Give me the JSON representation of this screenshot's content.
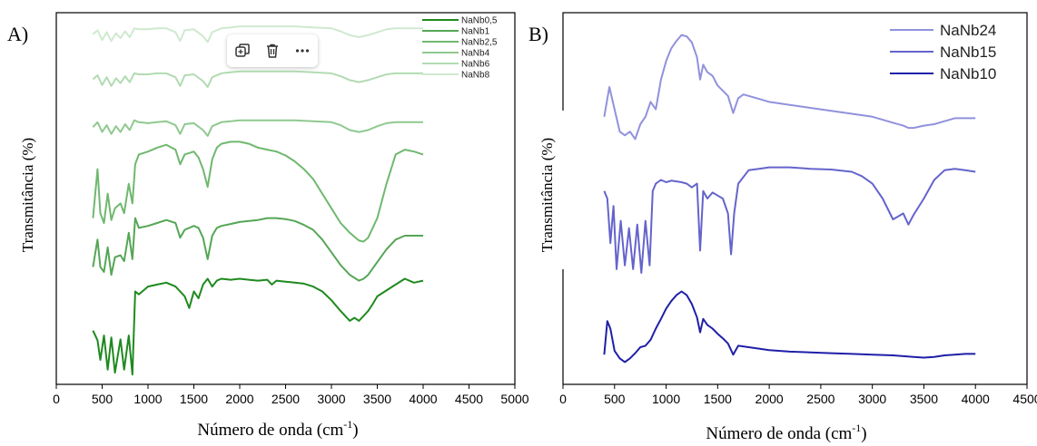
{
  "toolbar": {
    "buttons": [
      {
        "name": "copy-icon"
      },
      {
        "name": "trash-icon"
      },
      {
        "name": "more-icon"
      }
    ]
  },
  "chart_data": [
    {
      "panel_label": "A)",
      "type": "line",
      "xlabel": "Número de onda (cm",
      "xlabel_sup": "-1",
      "xlabel_end": ")",
      "ylabel": "Transmitância (%)",
      "xlim": [
        0,
        5000
      ],
      "xticks": [
        "0",
        "500",
        "1000",
        "1500",
        "2000",
        "2500",
        "3000",
        "3500",
        "4000",
        "4500",
        "5000"
      ],
      "xtick_values": [
        0,
        500,
        1000,
        1500,
        2000,
        2500,
        3000,
        3500,
        4000,
        4500,
        5000
      ],
      "y_scale_note": "arbitrary offset units",
      "legend": "top-right",
      "series": [
        {
          "name": "NaNb0,5",
          "color": "#1e8a1e",
          "offset": 0,
          "x": [
            400,
            450,
            480,
            520,
            560,
            600,
            640,
            700,
            740,
            790,
            830,
            860,
            900,
            1000,
            1100,
            1200,
            1300,
            1400,
            1450,
            1500,
            1550,
            1600,
            1650,
            1700,
            1750,
            1800,
            1900,
            2000,
            2100,
            2200,
            2300,
            2350,
            2400,
            2500,
            2600,
            2700,
            2800,
            2900,
            3000,
            3100,
            3200,
            3250,
            3300,
            3350,
            3400,
            3450,
            3500,
            3600,
            3700,
            3800,
            3900,
            4000
          ],
          "y": [
            35,
            25,
            5,
            30,
            -5,
            28,
            -8,
            26,
            -5,
            30,
            -10,
            75,
            72,
            80,
            82,
            84,
            80,
            70,
            58,
            75,
            68,
            82,
            88,
            80,
            86,
            88,
            87,
            88,
            87,
            86,
            87,
            82,
            86,
            85,
            84,
            83,
            80,
            75,
            66,
            55,
            45,
            48,
            45,
            50,
            55,
            62,
            70,
            76,
            82,
            88,
            84,
            86
          ]
        },
        {
          "name": "NaNb1",
          "color": "#55a655",
          "offset": 0,
          "x": [
            400,
            450,
            480,
            520,
            560,
            600,
            640,
            700,
            740,
            790,
            830,
            860,
            900,
            1000,
            1100,
            1200,
            1300,
            1350,
            1400,
            1500,
            1550,
            1600,
            1650,
            1700,
            1750,
            1800,
            1900,
            2000,
            2100,
            2200,
            2300,
            2400,
            2500,
            2600,
            2700,
            2800,
            2900,
            3000,
            3100,
            3200,
            3300,
            3350,
            3400,
            3500,
            3600,
            3700,
            3800,
            3900,
            4000
          ],
          "y": [
            100,
            128,
            100,
            95,
            120,
            92,
            110,
            112,
            106,
            135,
            108,
            150,
            140,
            142,
            145,
            148,
            145,
            130,
            138,
            142,
            140,
            130,
            108,
            132,
            140,
            142,
            144,
            146,
            147,
            148,
            150,
            150,
            149,
            147,
            143,
            138,
            128,
            115,
            102,
            92,
            86,
            88,
            92,
            105,
            118,
            128,
            132,
            132,
            132
          ]
        },
        {
          "name": "NaNb2,5",
          "color": "#6fb86f",
          "offset": 0,
          "x": [
            400,
            450,
            480,
            520,
            560,
            600,
            640,
            700,
            740,
            790,
            830,
            860,
            900,
            1000,
            1100,
            1200,
            1300,
            1350,
            1400,
            1500,
            1550,
            1600,
            1650,
            1700,
            1750,
            1800,
            1900,
            2000,
            2100,
            2200,
            2300,
            2400,
            2500,
            2600,
            2700,
            2800,
            2900,
            3000,
            3100,
            3200,
            3300,
            3350,
            3400,
            3500,
            3600,
            3700,
            3800,
            3900,
            4000
          ],
          "y": [
            150,
            200,
            155,
            145,
            175,
            148,
            160,
            165,
            155,
            185,
            165,
            205,
            215,
            218,
            222,
            225,
            220,
            205,
            215,
            218,
            212,
            200,
            182,
            210,
            222,
            226,
            228,
            228,
            226,
            222,
            220,
            218,
            214,
            208,
            200,
            190,
            175,
            160,
            145,
            135,
            127,
            126,
            130,
            150,
            185,
            215,
            220,
            218,
            215
          ]
        },
        {
          "name": "NaNb4",
          "color": "#8fc98f",
          "offset": 0,
          "x": [
            400,
            450,
            500,
            550,
            600,
            650,
            700,
            750,
            800,
            850,
            900,
            1000,
            1100,
            1200,
            1300,
            1350,
            1400,
            1500,
            1600,
            1650,
            1700,
            1800,
            1900,
            2000,
            2200,
            2400,
            2600,
            2800,
            3000,
            3100,
            3200,
            3300,
            3400,
            3500,
            3600,
            3700,
            3800,
            3900,
            4000
          ],
          "y": [
            243,
            248,
            238,
            245,
            236,
            244,
            238,
            246,
            240,
            250,
            248,
            247,
            248,
            249,
            245,
            236,
            246,
            247,
            240,
            234,
            244,
            248,
            249,
            250,
            250,
            250,
            250,
            249,
            248,
            245,
            240,
            238,
            240,
            244,
            247,
            248,
            248,
            248,
            248
          ]
        },
        {
          "name": "NaNb6",
          "color": "#b2dbb2",
          "offset": 0,
          "x": [
            400,
            450,
            500,
            550,
            600,
            650,
            700,
            750,
            800,
            850,
            900,
            1000,
            1100,
            1200,
            1300,
            1350,
            1400,
            1500,
            1600,
            1650,
            1700,
            1800,
            1900,
            2000,
            2200,
            2400,
            2600,
            2800,
            3000,
            3100,
            3200,
            3300,
            3400,
            3500,
            3600,
            3700,
            3800,
            3900,
            4000
          ],
          "y": [
            292,
            296,
            286,
            294,
            285,
            293,
            288,
            295,
            289,
            298,
            297,
            297,
            298,
            298,
            294,
            285,
            296,
            297,
            290,
            284,
            294,
            298,
            299,
            300,
            300,
            300,
            300,
            299,
            298,
            295,
            291,
            289,
            291,
            294,
            297,
            298,
            298,
            298,
            298
          ]
        },
        {
          "name": "NaNb8",
          "color": "#cfe9cf",
          "offset": 0,
          "x": [
            400,
            450,
            500,
            550,
            600,
            650,
            700,
            750,
            800,
            850,
            900,
            1000,
            1100,
            1200,
            1300,
            1350,
            1400,
            1500,
            1600,
            1650,
            1700,
            1800,
            1900,
            2000,
            2200,
            2400,
            2600,
            2800,
            3000,
            3100,
            3200,
            3300,
            3400,
            3500,
            3600,
            3700,
            3800,
            3900,
            4000
          ],
          "y": [
            338,
            342,
            332,
            340,
            331,
            339,
            334,
            341,
            335,
            344,
            343,
            343,
            344,
            344,
            340,
            331,
            342,
            343,
            336,
            330,
            340,
            344,
            345,
            346,
            346,
            346,
            346,
            345,
            344,
            341,
            337,
            335,
            337,
            340,
            343,
            344,
            344,
            344,
            344
          ]
        }
      ]
    },
    {
      "panel_label": "B)",
      "type": "line",
      "xlabel": "Número de onda (cm",
      "xlabel_sup": "-1",
      "xlabel_end": ")",
      "ylabel": "Transmitância (%)",
      "xlim": [
        0,
        4500
      ],
      "xticks": [
        "0",
        "500",
        "1000",
        "1500",
        "2000",
        "2500",
        "3000",
        "3500",
        "4000",
        "4500"
      ],
      "xtick_values": [
        0,
        500,
        1000,
        1500,
        2000,
        2500,
        3000,
        3500,
        4000,
        4500
      ],
      "y_scale_note": "arbitrary offset units",
      "legend": "top-right",
      "series": [
        {
          "name": "NaNb24",
          "color": "#9191dd",
          "x": [
            400,
            450,
            500,
            550,
            600,
            650,
            700,
            750,
            800,
            850,
            900,
            950,
            1000,
            1050,
            1100,
            1150,
            1200,
            1250,
            1300,
            1330,
            1360,
            1400,
            1450,
            1500,
            1550,
            1600,
            1650,
            1700,
            1750,
            1800,
            1900,
            2000,
            2200,
            2400,
            2600,
            2800,
            3000,
            3100,
            3200,
            3300,
            3350,
            3400,
            3500,
            3600,
            3700,
            3800,
            3900,
            4000
          ],
          "y": [
            420,
            460,
            430,
            400,
            395,
            400,
            390,
            410,
            420,
            440,
            430,
            470,
            495,
            512,
            522,
            530,
            528,
            520,
            500,
            470,
            490,
            480,
            475,
            462,
            455,
            448,
            425,
            445,
            450,
            448,
            444,
            440,
            436,
            432,
            428,
            424,
            420,
            416,
            412,
            408,
            405,
            405,
            408,
            410,
            414,
            418,
            418,
            418
          ]
        },
        {
          "name": "NaNb15",
          "color": "#6464cc",
          "x": [
            400,
            430,
            460,
            490,
            520,
            560,
            600,
            640,
            680,
            720,
            760,
            800,
            840,
            870,
            900,
            950,
            1000,
            1050,
            1100,
            1150,
            1200,
            1250,
            1300,
            1330,
            1360,
            1400,
            1450,
            1500,
            1550,
            1600,
            1630,
            1660,
            1700,
            1800,
            1900,
            2000,
            2200,
            2400,
            2600,
            2800,
            2900,
            3000,
            3100,
            3200,
            3250,
            3300,
            3350,
            3400,
            3500,
            3600,
            3700,
            3800,
            3900,
            4000
          ],
          "y": [
            320,
            310,
            250,
            300,
            215,
            280,
            220,
            270,
            215,
            275,
            210,
            280,
            220,
            320,
            330,
            335,
            332,
            334,
            333,
            332,
            330,
            325,
            330,
            240,
            320,
            310,
            318,
            314,
            310,
            290,
            235,
            290,
            330,
            348,
            350,
            352,
            352,
            350,
            349,
            346,
            340,
            330,
            310,
            282,
            286,
            290,
            275,
            288,
            310,
            335,
            348,
            350,
            348,
            346
          ]
        },
        {
          "name": "NaNb10",
          "color": "#1f1fa8",
          "x": [
            400,
            430,
            460,
            500,
            550,
            600,
            650,
            700,
            750,
            800,
            850,
            900,
            950,
            1000,
            1050,
            1100,
            1150,
            1200,
            1250,
            1300,
            1330,
            1360,
            1400,
            1450,
            1500,
            1550,
            1600,
            1650,
            1700,
            1800,
            1900,
            2000,
            2200,
            2400,
            2600,
            2800,
            3000,
            3200,
            3400,
            3500,
            3600,
            3700,
            3800,
            3900,
            4000
          ],
          "y": [
            100,
            145,
            135,
            105,
            95,
            90,
            95,
            102,
            110,
            112,
            120,
            135,
            148,
            162,
            172,
            180,
            185,
            180,
            168,
            150,
            130,
            148,
            140,
            135,
            128,
            122,
            115,
            100,
            112,
            110,
            108,
            106,
            104,
            103,
            102,
            101,
            100,
            99,
            97,
            96,
            97,
            99,
            100,
            101,
            101
          ]
        }
      ]
    }
  ]
}
